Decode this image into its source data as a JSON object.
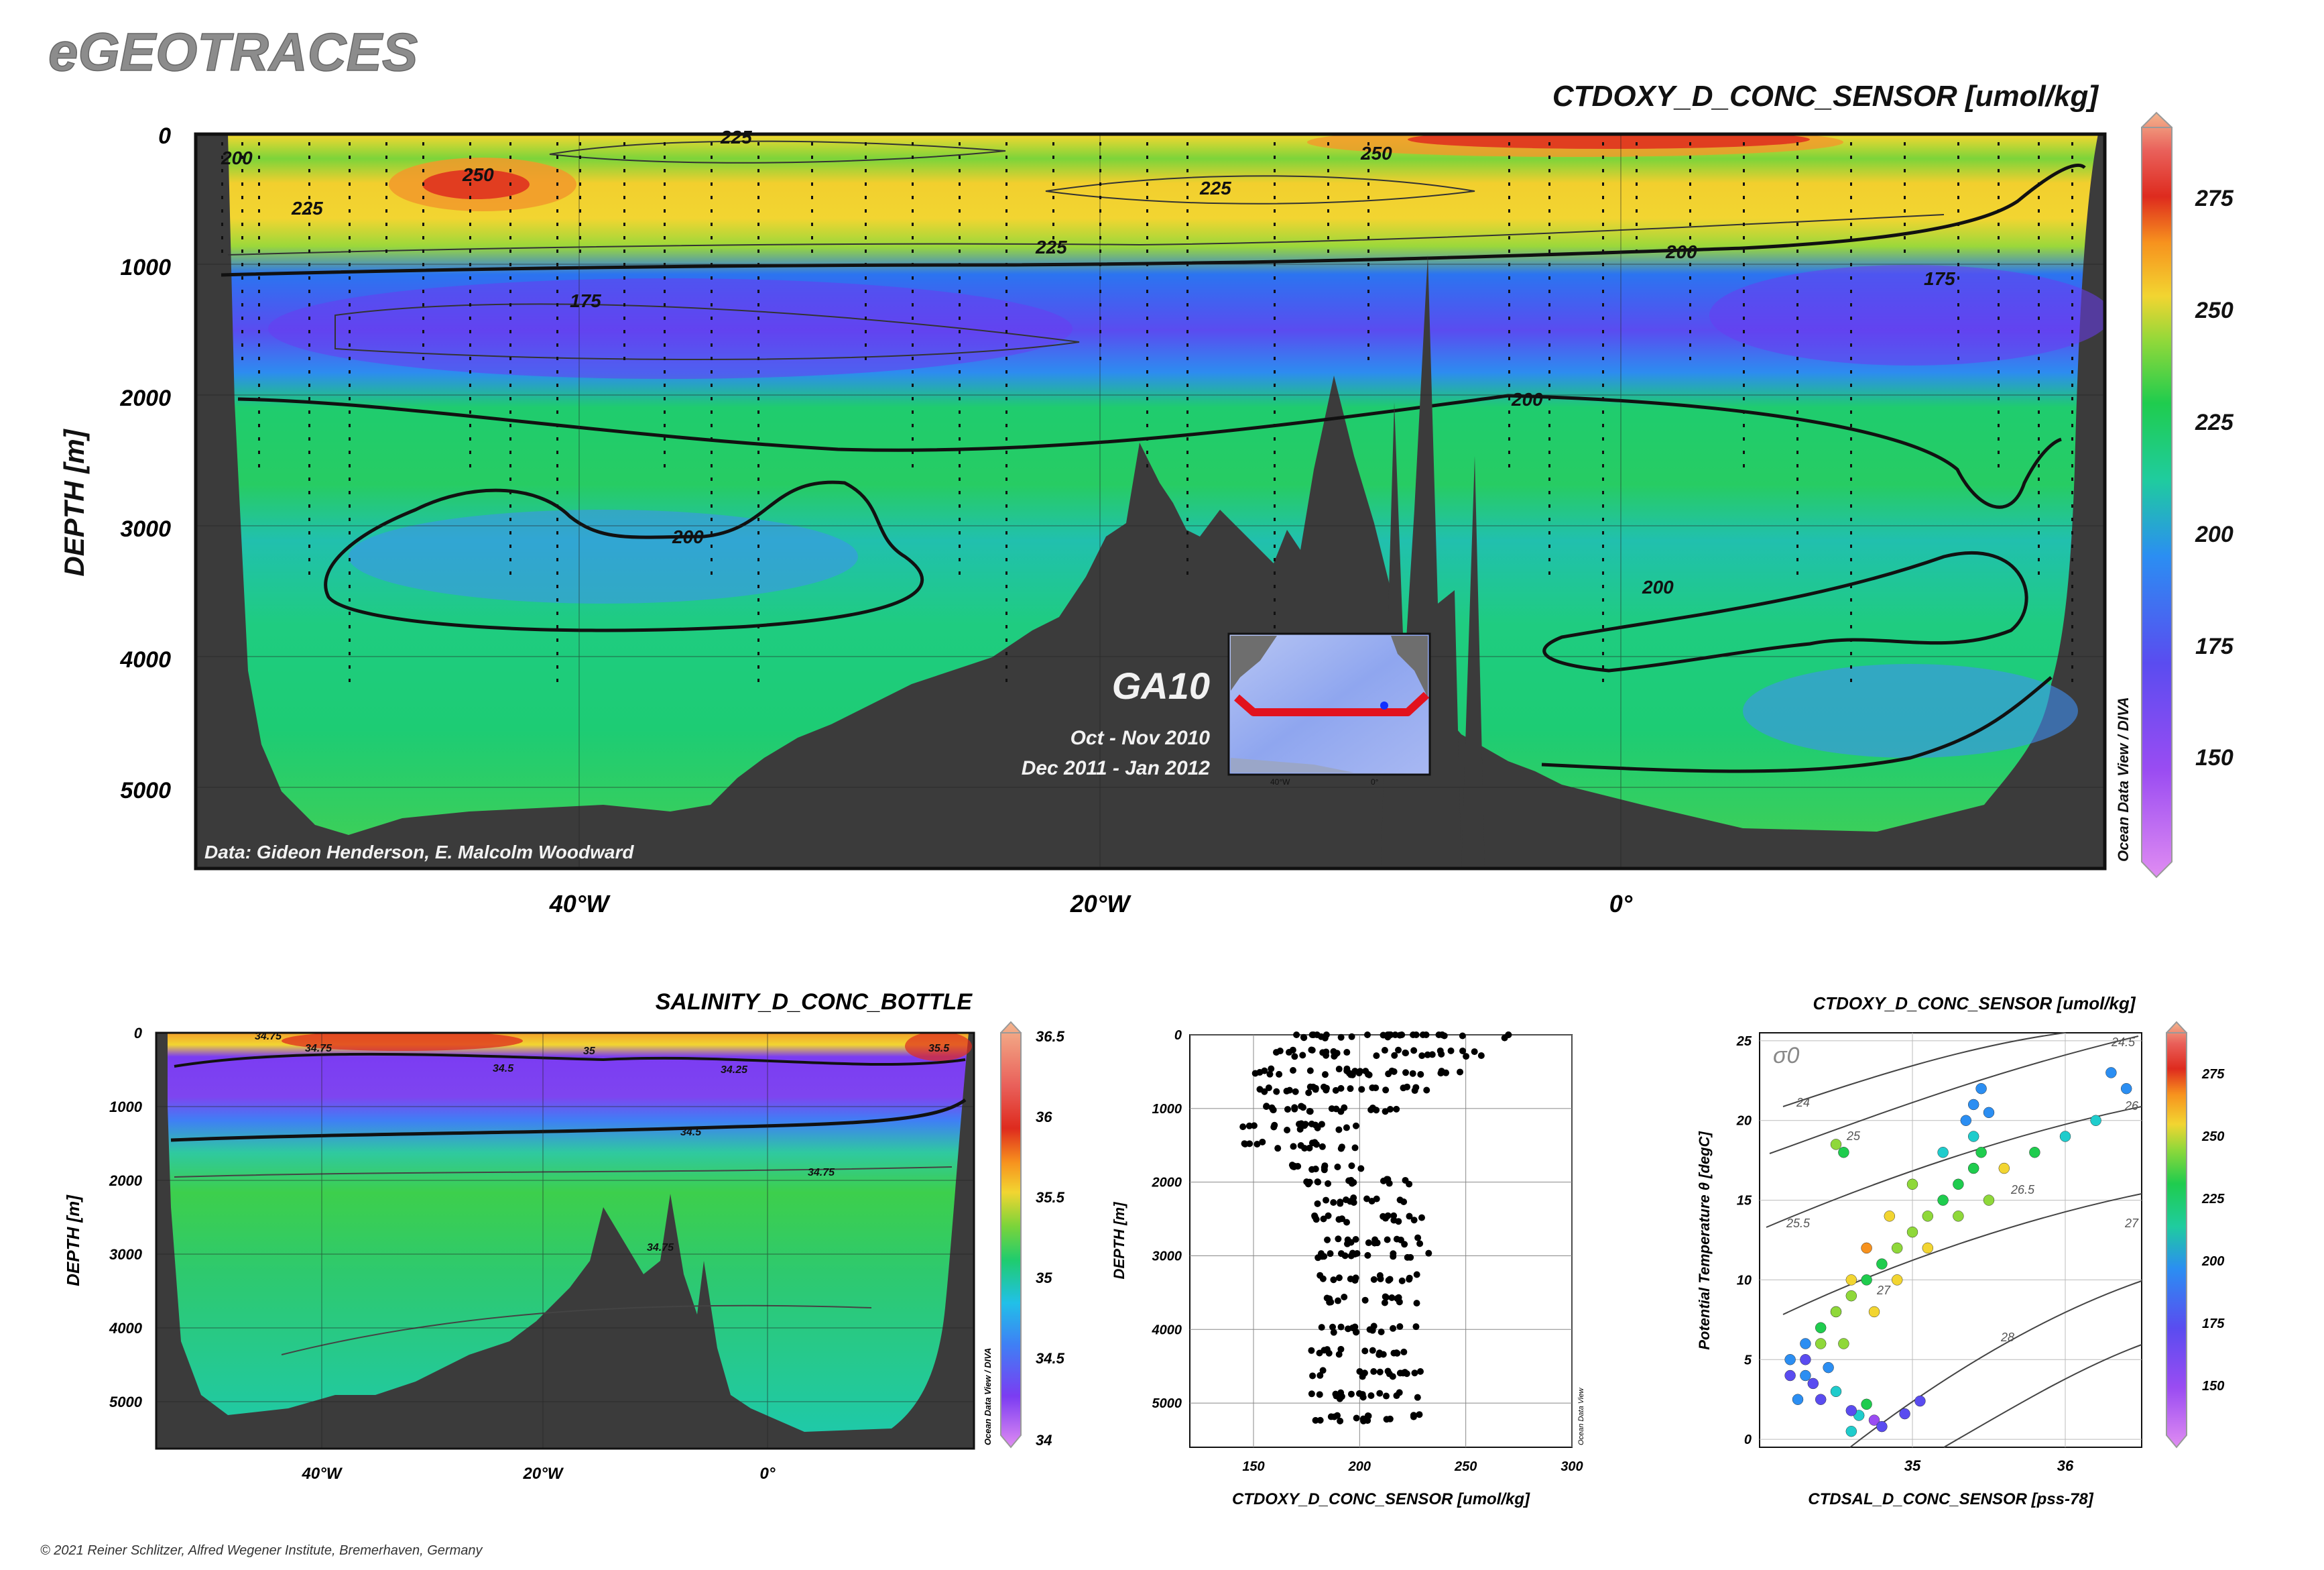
{
  "brand": "eGEOTRACES",
  "copyright": "© 2021 Reiner Schlitzer, Alfred Wegener Institute, Bremerhaven, Germany",
  "colors": {
    "background": "#ffffff",
    "bathymetry": "#3b3b3b",
    "contour": "#111111",
    "colormap": [
      "#d985f0",
      "#7b3cf2",
      "#3f7ff5",
      "#21c0e8",
      "#1fcc6e",
      "#7bd43a",
      "#f2d531",
      "#f79a1e",
      "#de2b1e",
      "#f2a37a"
    ]
  },
  "chart_data": [
    {
      "id": "main-section",
      "type": "heatmap",
      "title": "CTDOXY_D_CONC_SENSOR [umol/kg]",
      "ylabel": "DEPTH [m]",
      "xlabel": "",
      "x_ticks": [
        "40°W",
        "20°W",
        "0°"
      ],
      "x_tick_values": [
        -40,
        -20,
        0
      ],
      "x_range": [
        -55.5,
        18
      ],
      "y_ticks": [
        "0",
        "1000",
        "2000",
        "3000",
        "4000",
        "5000"
      ],
      "y_tick_values": [
        0,
        1000,
        2000,
        3000,
        4000,
        5000
      ],
      "y_range": [
        0,
        5600
      ],
      "contour_labels": [
        "200",
        "225",
        "250",
        "225",
        "225",
        "250",
        "225",
        "200",
        "175",
        "175",
        "200",
        "200",
        "200"
      ],
      "colorbar": {
        "ticks": [
          "150",
          "175",
          "200",
          "225",
          "250",
          "275"
        ],
        "tick_values": [
          150,
          175,
          200,
          225,
          250,
          275
        ],
        "range": [
          128,
          290
        ]
      },
      "credit": "Data: Gideon Henderson, E. Malcolm Woodward",
      "software": "Ocean Data View / DIVA",
      "inset": {
        "section": "GA10",
        "cruise_dates": [
          "Oct - Nov 2010",
          "Dec 2011 - Jan 2012"
        ],
        "lon_labels": [
          "40°W",
          "0°"
        ]
      },
      "layers_oxygen_umol_kg": [
        {
          "depth_m": 100,
          "value": 238
        },
        {
          "depth_m": 400,
          "value": 228
        },
        {
          "depth_m": 800,
          "value": 224
        },
        {
          "depth_m": 1100,
          "value": 192
        },
        {
          "depth_m": 1500,
          "value": 178
        },
        {
          "depth_m": 2000,
          "value": 200
        },
        {
          "depth_m": 2600,
          "value": 207
        },
        {
          "depth_m": 3300,
          "value": 196
        },
        {
          "depth_m": 4200,
          "value": 202
        },
        {
          "depth_m": 5200,
          "value": 208
        }
      ]
    },
    {
      "id": "salinity-section",
      "type": "heatmap",
      "title": "SALINITY_D_CONC_BOTTLE",
      "ylabel": "DEPTH [m]",
      "x_ticks": [
        "40°W",
        "20°W",
        "0°"
      ],
      "x_tick_values": [
        -40,
        -20,
        0
      ],
      "y_ticks": [
        "0",
        "1000",
        "2000",
        "3000",
        "4000",
        "5000"
      ],
      "y_tick_values": [
        0,
        1000,
        2000,
        3000,
        4000,
        5000
      ],
      "contour_labels": [
        "34.75",
        "34.5",
        "35",
        "34.25",
        "34.75",
        "35.5",
        "34.5",
        "34.75",
        "34.75"
      ],
      "colorbar": {
        "ticks": [
          "34",
          "34.5",
          "35",
          "35.5",
          "36",
          "36.5"
        ],
        "tick_values": [
          34,
          34.5,
          35,
          35.5,
          36,
          36.5
        ]
      },
      "software": "Ocean Data View / DIVA"
    },
    {
      "id": "profile-scatter",
      "type": "scatter",
      "xlabel": "CTDOXY_D_CONC_SENSOR [umol/kg]",
      "ylabel": "DEPTH [m]",
      "x_ticks": [
        "150",
        "200",
        "250",
        "300"
      ],
      "x_range": [
        120,
        300
      ],
      "y_ticks": [
        "0",
        "1000",
        "2000",
        "3000",
        "4000",
        "5000"
      ],
      "y_range": [
        0,
        5600
      ],
      "software": "Ocean Data View",
      "profile_clusters": [
        {
          "depth_m": 0,
          "x_min": 165,
          "x_max": 275
        },
        {
          "depth_m": 250,
          "x_min": 160,
          "x_max": 265
        },
        {
          "depth_m": 500,
          "x_min": 150,
          "x_max": 250
        },
        {
          "depth_m": 750,
          "x_min": 150,
          "x_max": 235
        },
        {
          "depth_m": 1000,
          "x_min": 150,
          "x_max": 220
        },
        {
          "depth_m": 1250,
          "x_min": 145,
          "x_max": 205
        },
        {
          "depth_m": 1500,
          "x_min": 145,
          "x_max": 200
        },
        {
          "depth_m": 1800,
          "x_min": 165,
          "x_max": 205
        },
        {
          "depth_m": 2000,
          "x_min": 175,
          "x_max": 225
        },
        {
          "depth_m": 2250,
          "x_min": 180,
          "x_max": 225
        },
        {
          "depth_m": 2500,
          "x_min": 178,
          "x_max": 232
        },
        {
          "depth_m": 2800,
          "x_min": 178,
          "x_max": 230
        },
        {
          "depth_m": 3000,
          "x_min": 178,
          "x_max": 233
        },
        {
          "depth_m": 3300,
          "x_min": 178,
          "x_max": 228
        },
        {
          "depth_m": 3600,
          "x_min": 180,
          "x_max": 228
        },
        {
          "depth_m": 4000,
          "x_min": 176,
          "x_max": 228
        },
        {
          "depth_m": 4300,
          "x_min": 176,
          "x_max": 228
        },
        {
          "depth_m": 4600,
          "x_min": 176,
          "x_max": 230
        },
        {
          "depth_m": 4900,
          "x_min": 176,
          "x_max": 230
        },
        {
          "depth_m": 5200,
          "x_min": 176,
          "x_max": 230
        }
      ]
    },
    {
      "id": "ts-diagram",
      "type": "scatter",
      "title": "CTDOXY_D_CONC_SENSOR [umol/kg]",
      "xlabel": "CTDSAL_D_CONC_SENSOR [pss-78]",
      "ylabel": "Potential Temperature θ [degC]",
      "x_ticks": [
        "35",
        "36"
      ],
      "x_tick_values": [
        35,
        36
      ],
      "x_range": [
        34.0,
        36.5
      ],
      "y_ticks": [
        "0",
        "5",
        "10",
        "15",
        "20",
        "25"
      ],
      "y_tick_values": [
        0,
        5,
        10,
        15,
        20,
        25
      ],
      "y_range": [
        -0.5,
        25.5
      ],
      "density_symbol": "σ0",
      "isopycnal_labels": [
        "24",
        "24.5",
        "25",
        "25.5",
        "26",
        "26.5",
        "27",
        "27",
        "28"
      ],
      "colorbar": {
        "ticks": [
          "150",
          "175",
          "200",
          "225",
          "250",
          "275"
        ],
        "tick_values": [
          150,
          175,
          200,
          225,
          250,
          275
        ]
      },
      "software": "Ocean Data View",
      "points": [
        [
          34.6,
          0.5,
          200
        ],
        [
          34.65,
          1.5,
          195
        ],
        [
          34.7,
          2.2,
          205
        ],
        [
          34.5,
          3,
          190
        ],
        [
          34.3,
          4,
          180
        ],
        [
          34.2,
          5,
          175
        ],
        [
          34.3,
          6,
          185
        ],
        [
          34.4,
          7,
          210
        ],
        [
          34.5,
          8,
          215
        ],
        [
          34.6,
          9,
          220
        ],
        [
          34.7,
          10,
          215
        ],
        [
          34.8,
          11,
          210
        ],
        [
          34.9,
          12,
          220
        ],
        [
          35.0,
          13,
          225
        ],
        [
          35.1,
          14,
          222
        ],
        [
          35.2,
          15,
          218
        ],
        [
          35.3,
          16,
          215
        ],
        [
          35.4,
          17,
          210
        ],
        [
          35.45,
          18,
          205
        ],
        [
          35.4,
          19,
          195
        ],
        [
          35.35,
          20,
          185
        ],
        [
          35.4,
          21,
          180
        ],
        [
          35.2,
          18,
          200
        ],
        [
          35.0,
          16,
          230
        ],
        [
          34.85,
          14,
          240
        ],
        [
          34.7,
          12,
          245
        ],
        [
          34.6,
          10,
          235
        ],
        [
          34.5,
          8,
          230
        ],
        [
          34.4,
          6,
          225
        ],
        [
          34.3,
          5,
          170
        ],
        [
          34.2,
          4,
          165
        ],
        [
          34.4,
          2.5,
          160
        ],
        [
          34.6,
          1.8,
          165
        ],
        [
          34.75,
          1.2,
          158
        ],
        [
          34.8,
          0.8,
          162
        ],
        [
          36.3,
          23,
          180
        ],
        [
          36.4,
          22,
          175
        ],
        [
          36.2,
          20,
          190
        ],
        [
          36.0,
          19,
          200
        ],
        [
          35.8,
          18,
          210
        ],
        [
          34.55,
          18,
          215
        ],
        [
          34.5,
          18.5,
          220
        ],
        [
          35.6,
          17,
          235
        ],
        [
          35.5,
          15,
          225
        ],
        [
          35.3,
          14,
          230
        ],
        [
          35.1,
          12,
          240
        ],
        [
          34.9,
          10,
          238
        ],
        [
          34.75,
          8,
          232
        ],
        [
          34.55,
          6,
          228
        ],
        [
          34.45,
          4.5,
          180
        ],
        [
          34.35,
          3.5,
          172
        ],
        [
          34.25,
          2.5,
          178
        ],
        [
          34.95,
          1.6,
          168
        ],
        [
          35.05,
          2.4,
          170
        ],
        [
          35.45,
          22,
          182
        ],
        [
          35.5,
          20.5,
          188
        ]
      ]
    }
  ]
}
